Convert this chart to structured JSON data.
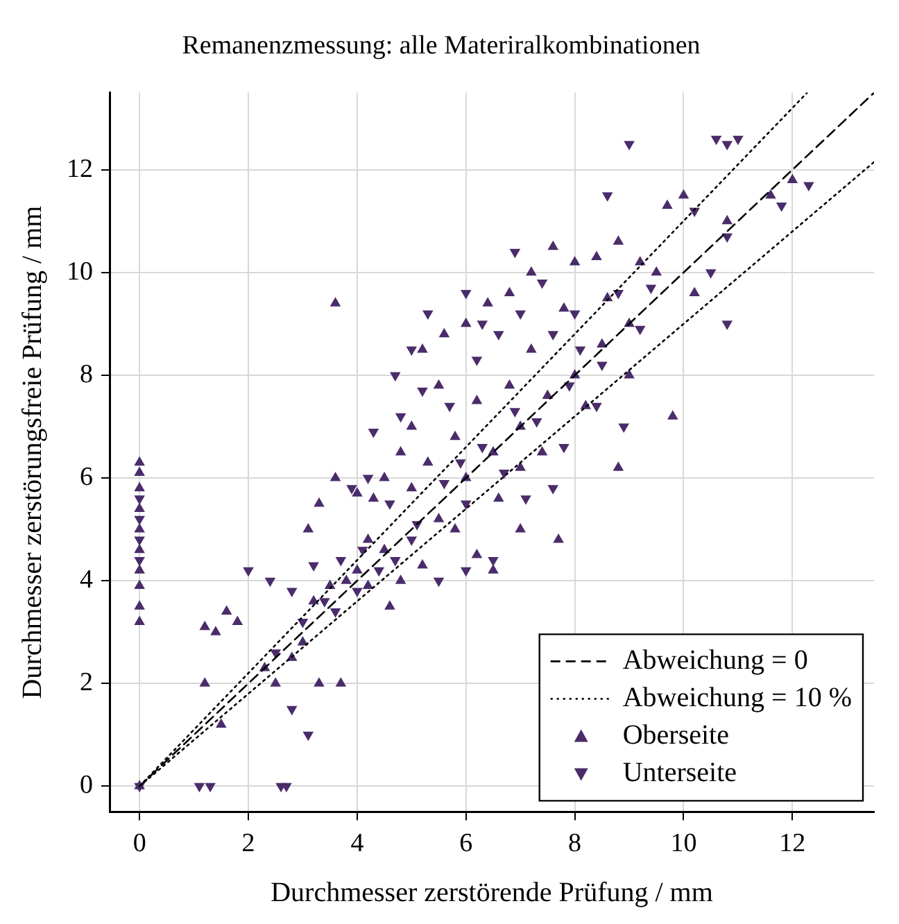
{
  "chart_data": {
    "type": "scatter",
    "title": "Remanenzmessung: alle Materiralkombinationen",
    "xlabel": "Durchmesser zerstörende Prüfung / mm",
    "ylabel": "Durchmesser zerstörungsfreie Prüfung / mm",
    "xlim": [
      -0.55,
      13.5
    ],
    "ylim": [
      -0.5,
      13.5
    ],
    "xticks": [
      0,
      2,
      4,
      6,
      8,
      10,
      12
    ],
    "yticks": [
      0,
      2,
      4,
      6,
      8,
      10,
      12
    ],
    "grid": true,
    "legend": "bottom right",
    "series": [
      {
        "name": "Abweichung = 0",
        "type": "line",
        "color": "#000000",
        "line_style": "dashed",
        "marker": "none",
        "x": [
          0,
          13.5
        ],
        "values": [
          0,
          13.5
        ]
      },
      {
        "name": "Abweichung = 10 %",
        "type": "line",
        "color": "#000000",
        "line_style": "dotted",
        "marker": "none",
        "x": [
          0,
          12.27
        ],
        "values": [
          0,
          13.5
        ]
      },
      {
        "type": "line",
        "color": "#000000",
        "line_style": "dotted",
        "marker": "none",
        "x": [
          0,
          13.5
        ],
        "values": [
          0,
          12.15
        ]
      },
      {
        "name": "Oberseite",
        "type": "scatter",
        "color": "#4a2c6a",
        "marker": "triangle",
        "x": [
          0,
          0,
          0,
          0,
          0,
          0,
          0,
          0,
          0,
          0,
          0,
          1.2,
          1.4,
          1.6,
          1.8,
          1.2,
          1.5,
          2.3,
          2.5,
          2.8,
          3.3,
          3.7,
          3.0,
          3.2,
          3.5,
          3.8,
          4.0,
          4.2,
          4.3,
          4.0,
          3.6,
          3.3,
          3.1,
          3.6,
          4.5,
          4.8,
          5.0,
          5.5,
          5.2,
          5.6,
          6.0,
          6.4,
          6.8,
          7.2,
          7.6,
          8.0,
          8.4,
          8.8,
          9.2,
          9.5,
          9.7,
          10.2,
          10.0,
          10.8,
          11.6,
          12.0,
          8.8,
          9.8,
          7.7,
          7.0,
          6.5,
          6.2,
          5.8,
          5.5,
          5.2,
          4.8,
          4.6,
          6.0,
          6.5,
          7.0,
          7.5,
          8.0,
          8.5,
          9.0,
          6.8,
          7.2,
          7.8,
          5.8,
          6.2,
          5.0,
          4.5,
          8.2,
          7.4,
          6.6,
          9.0,
          8.6,
          7.0,
          5.3,
          4.2
        ],
        "values": [
          0,
          3.2,
          3.5,
          3.9,
          4.2,
          4.6,
          5.0,
          5.4,
          5.8,
          6.1,
          6.3,
          3.1,
          3.0,
          3.4,
          3.2,
          2.0,
          1.2,
          2.3,
          2.0,
          2.5,
          2.0,
          2.0,
          2.8,
          3.6,
          3.9,
          4.0,
          4.2,
          3.9,
          5.6,
          5.7,
          6.0,
          5.5,
          5.0,
          9.4,
          6.0,
          6.5,
          7.0,
          7.8,
          8.5,
          8.8,
          9.0,
          9.4,
          9.6,
          10.0,
          10.5,
          10.2,
          10.3,
          10.6,
          10.2,
          10.0,
          11.3,
          9.6,
          11.5,
          11.0,
          11.5,
          11.8,
          6.2,
          7.2,
          4.8,
          5.0,
          4.2,
          4.5,
          5.0,
          5.2,
          4.3,
          4.0,
          3.5,
          6.0,
          6.5,
          7.0,
          7.6,
          8.0,
          8.6,
          9.0,
          7.8,
          8.5,
          9.3,
          6.8,
          7.5,
          5.8,
          4.6,
          7.4,
          6.5,
          5.6,
          8.0,
          9.5,
          6.2,
          6.3,
          4.8
        ]
      },
      {
        "name": "Unterseite",
        "type": "scatter",
        "color": "#4a2c6a",
        "marker": "triangle-down",
        "x": [
          0,
          1.1,
          1.3,
          2.6,
          2.7,
          3.1,
          2.8,
          2.0,
          2.4,
          2.8,
          3.2,
          3.4,
          3.0,
          2.5,
          3.7,
          4.1,
          4.4,
          5.3,
          5.2,
          4.7,
          5.0,
          6.0,
          6.3,
          6.9,
          7.4,
          8.0,
          8.6,
          9.0,
          10.6,
          10.8,
          11.0,
          10.2,
          10.8,
          11.8,
          12.3,
          10.5,
          10.8,
          9.2,
          8.4,
          7.6,
          7.1,
          6.5,
          6.0,
          5.5,
          5.0,
          4.6,
          4.2,
          3.9,
          4.3,
          4.8,
          5.7,
          6.2,
          6.6,
          7.0,
          7.6,
          8.1,
          8.5,
          6.3,
          6.9,
          7.3,
          7.9,
          8.8,
          9.4,
          6.0,
          5.6,
          5.1,
          4.7,
          4.0,
          3.6,
          6.7,
          7.8,
          8.9,
          5.9,
          0,
          0,
          0,
          0
        ],
        "values": [
          0,
          0,
          0,
          0,
          0,
          1.0,
          1.5,
          4.2,
          4.0,
          3.8,
          4.3,
          3.6,
          3.2,
          2.6,
          4.4,
          4.6,
          4.2,
          9.2,
          7.7,
          8.0,
          8.5,
          9.6,
          9.0,
          10.4,
          9.8,
          9.2,
          11.5,
          12.5,
          12.6,
          12.5,
          12.6,
          11.2,
          10.7,
          11.3,
          11.7,
          10.0,
          9.0,
          8.9,
          7.4,
          5.8,
          5.6,
          4.4,
          4.2,
          4.0,
          4.8,
          5.5,
          6.0,
          5.8,
          6.9,
          7.2,
          7.4,
          8.3,
          8.8,
          9.2,
          8.8,
          8.5,
          8.2,
          6.6,
          7.3,
          7.1,
          7.8,
          9.6,
          9.7,
          5.5,
          5.9,
          5.1,
          4.4,
          3.8,
          3.4,
          6.1,
          6.6,
          7.0,
          6.3,
          4.8,
          5.2,
          4.4,
          5.6
        ]
      }
    ]
  }
}
